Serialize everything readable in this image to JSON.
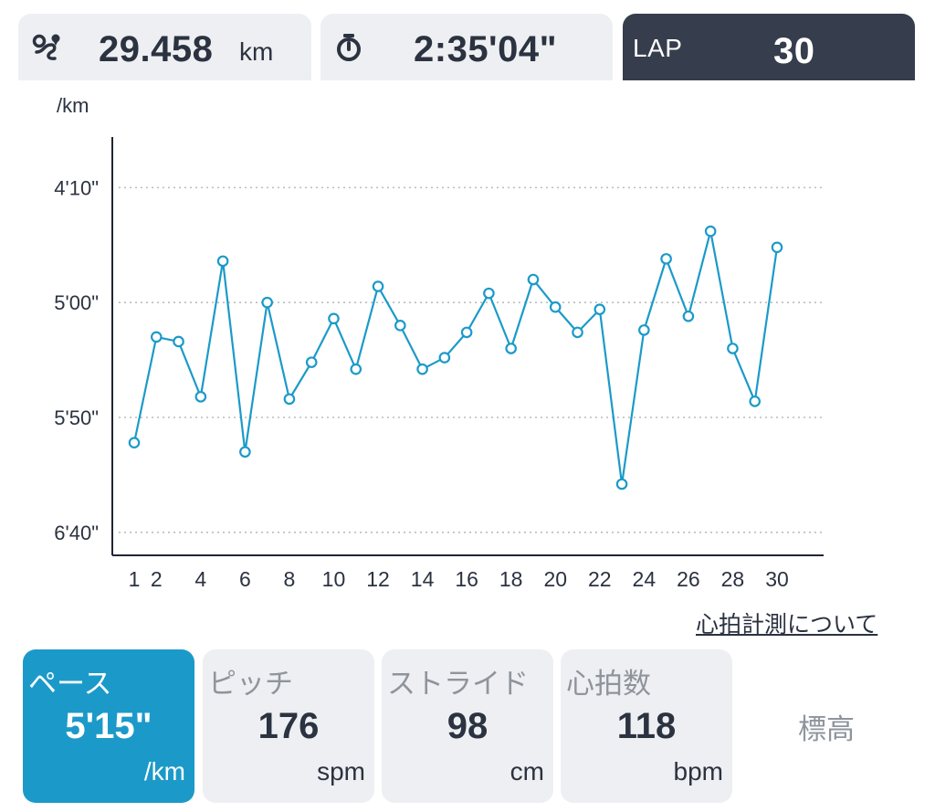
{
  "header": {
    "distance": {
      "value": "29.458",
      "unit": "km",
      "icon": "route-icon"
    },
    "time": {
      "value": "2:35'04\"",
      "icon": "stopwatch-icon"
    },
    "lap": {
      "label": "LAP",
      "value": "30"
    }
  },
  "chart_data": {
    "type": "line",
    "ylabel": "/km",
    "y_ticks": [
      "4'10\"",
      "5'00\"",
      "5'50\"",
      "6'40\""
    ],
    "y_tick_values": [
      250,
      300,
      350,
      400
    ],
    "y_inverted": true,
    "ylim": [
      228,
      410
    ],
    "x_ticks": [
      "1",
      "2",
      "4",
      "6",
      "8",
      "10",
      "12",
      "14",
      "16",
      "18",
      "20",
      "22",
      "24",
      "26",
      "28",
      "30"
    ],
    "x_tick_values": [
      1,
      2,
      4,
      6,
      8,
      10,
      12,
      14,
      16,
      18,
      20,
      22,
      24,
      26,
      28,
      30
    ],
    "xlim": [
      1,
      30
    ],
    "grid": "horizontal dotted",
    "color": "#1b9ac9",
    "series": [
      {
        "x": [
          1,
          2,
          3,
          4,
          5,
          6,
          7,
          8,
          9,
          10,
          11,
          12,
          13,
          14,
          15,
          16,
          17,
          18,
          19,
          20,
          21,
          22,
          23,
          24,
          25,
          26,
          27,
          28,
          29,
          30
        ],
        "values": [
          361,
          315,
          317,
          341,
          282,
          365,
          300,
          342,
          326,
          307,
          329,
          293,
          310,
          329,
          324,
          313,
          296,
          320,
          290,
          302,
          313,
          303,
          379,
          312,
          281,
          306,
          269,
          320,
          343,
          276
        ],
        "value_unit": "seconds per km"
      }
    ]
  },
  "hr_link": "心拍計測について",
  "stats": [
    {
      "label": "ペース",
      "value": "5'15\"",
      "unit": "/km",
      "active": true
    },
    {
      "label": "ピッチ",
      "value": "176",
      "unit": "spm",
      "active": false
    },
    {
      "label": "ストライド",
      "value": "98",
      "unit": "cm",
      "active": false
    },
    {
      "label": "心拍数",
      "value": "118",
      "unit": "bpm",
      "active": false
    }
  ],
  "elevation_label": "標高"
}
